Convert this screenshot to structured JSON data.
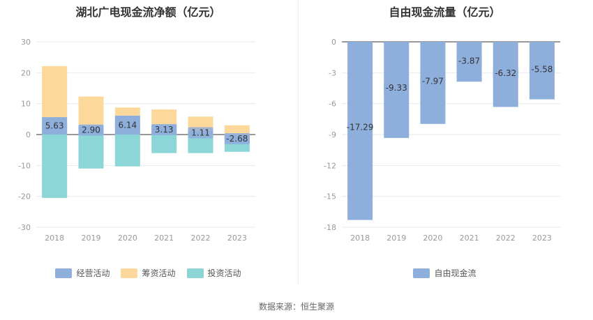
{
  "footer": "数据来源：恒生聚源",
  "chart_data": [
    {
      "type": "bar",
      "stacked": true,
      "title": "湖北广电现金流净额（亿元）",
      "categories": [
        "2018",
        "2019",
        "2020",
        "2021",
        "2022",
        "2023"
      ],
      "ylim": [
        -30,
        30
      ],
      "yticks": [
        30,
        20,
        10,
        0,
        -10,
        -20,
        -30
      ],
      "grid": true,
      "legend_position": "bottom",
      "series": [
        {
          "name": "经营活动",
          "color": "#8eaedc",
          "values": [
            5.63,
            2.9,
            6.14,
            3.13,
            1.11,
            -2.68
          ],
          "labels": [
            "5.63",
            "2.90",
            "6.14",
            "3.13",
            "1.11",
            "-2.68"
          ]
        },
        {
          "name": "筹资活动",
          "color": "#fcd89b",
          "values": [
            16.5,
            9.4,
            2.6,
            5.0,
            4.7,
            3.0
          ]
        },
        {
          "name": "投资活动",
          "color": "#8dd6d8",
          "values": [
            -20.5,
            -11.0,
            -10.3,
            -6.0,
            -6.0,
            -2.9
          ]
        }
      ]
    },
    {
      "type": "bar",
      "title": "自由现金流量（亿元）",
      "categories": [
        "2018",
        "2019",
        "2020",
        "2021",
        "2022",
        "2023"
      ],
      "ylim": [
        -18,
        0
      ],
      "yticks": [
        0,
        -3,
        -6,
        -9,
        -12,
        -15,
        -18
      ],
      "grid": true,
      "legend_position": "bottom",
      "series": [
        {
          "name": "自由现金流",
          "color": "#8eaedc",
          "values": [
            -17.29,
            -9.33,
            -7.97,
            -3.87,
            -6.32,
            -5.58
          ],
          "labels": [
            "-17.29",
            "-9.33",
            "-7.97",
            "-3.87",
            "-6.32",
            "-5.58"
          ]
        }
      ]
    }
  ]
}
